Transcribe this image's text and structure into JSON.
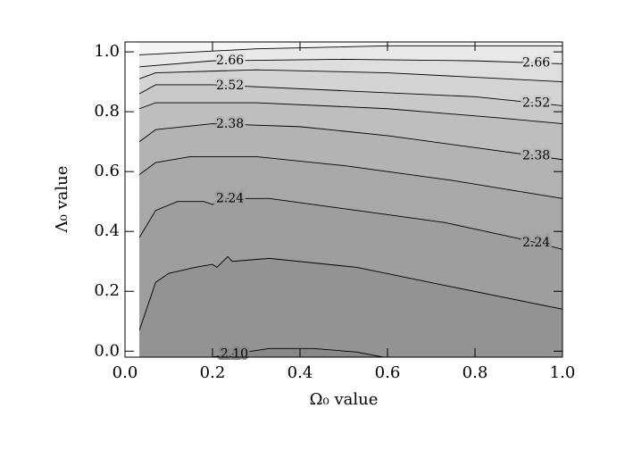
{
  "chart_data": {
    "type": "contour",
    "x_label": "Ω₀ value",
    "y_label": "Λ₀ value",
    "xlim": [
      0,
      1
    ],
    "ylim": [
      -0.02,
      1.033
    ],
    "xticks": [
      {
        "value": 0,
        "label": "0.0"
      },
      0.2,
      0.4,
      0.6,
      0.8,
      {
        "value": 1,
        "label": "1.0"
      }
    ],
    "yticks": [
      {
        "value": 0,
        "label": "0.0"
      },
      0.2,
      0.4,
      0.6,
      0.8,
      {
        "value": 1,
        "label": "1.0"
      }
    ],
    "contours": [
      {
        "level": 2.1,
        "label": "2.10",
        "x": [
          0.2,
          0.33,
          0.43,
          0.53,
          0.59
        ],
        "y": [
          -0.02,
          0.009,
          0.009,
          -0.003,
          -0.02
        ]
      },
      {
        "level": 2.17,
        "x": [
          0.033,
          0.07,
          0.1,
          0.16,
          0.2,
          0.21,
          0.235,
          0.245,
          0.33,
          0.53,
          0.73,
          1.0
        ],
        "y": [
          0.07,
          0.23,
          0.26,
          0.28,
          0.29,
          0.28,
          0.316,
          0.3,
          0.31,
          0.28,
          0.22,
          0.14
        ]
      },
      {
        "level": 2.24,
        "label": "2.24",
        "x": [
          0.033,
          0.07,
          0.12,
          0.18,
          0.2,
          0.22,
          0.33,
          0.53,
          0.73,
          0.92,
          1.0
        ],
        "y": [
          0.38,
          0.47,
          0.5,
          0.5,
          0.49,
          0.51,
          0.51,
          0.47,
          0.43,
          0.37,
          0.34
        ]
      },
      {
        "level": 2.31,
        "x": [
          0.033,
          0.07,
          0.15,
          0.3,
          0.5,
          0.75,
          1.0
        ],
        "y": [
          0.59,
          0.63,
          0.65,
          0.65,
          0.62,
          0.57,
          0.51
        ]
      },
      {
        "level": 2.38,
        "label": "2.38",
        "x": [
          0.033,
          0.07,
          0.2,
          0.4,
          0.6,
          0.8,
          1.0
        ],
        "y": [
          0.7,
          0.74,
          0.76,
          0.75,
          0.72,
          0.68,
          0.64
        ]
      },
      {
        "level": 2.45,
        "x": [
          0.033,
          0.07,
          0.3,
          0.6,
          0.85,
          1.0
        ],
        "y": [
          0.81,
          0.83,
          0.83,
          0.81,
          0.78,
          0.76
        ]
      },
      {
        "level": 2.52,
        "label": "2.52",
        "x": [
          0.033,
          0.07,
          0.2,
          0.5,
          0.8,
          1.0
        ],
        "y": [
          0.86,
          0.89,
          0.89,
          0.87,
          0.85,
          0.82
        ]
      },
      {
        "level": 2.59,
        "x": [
          0.033,
          0.07,
          0.3,
          0.6,
          1.0
        ],
        "y": [
          0.91,
          0.93,
          0.94,
          0.93,
          0.9
        ]
      },
      {
        "level": 2.66,
        "label": "2.66",
        "x": [
          0.033,
          0.2,
          0.5,
          0.8,
          1.0
        ],
        "y": [
          0.95,
          0.97,
          0.975,
          0.97,
          0.96
        ]
      },
      {
        "level": 2.73,
        "x": [
          0.033,
          0.3,
          0.6,
          1.0
        ],
        "y": [
          0.99,
          1.01,
          1.02,
          1.02
        ]
      }
    ]
  }
}
